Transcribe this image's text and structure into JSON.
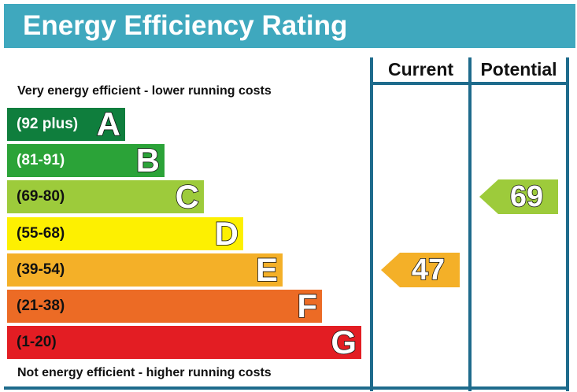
{
  "title": "Energy Efficiency Rating",
  "columns": {
    "current": "Current",
    "potential": "Potential"
  },
  "top_caption": "Very energy efficient - lower running costs",
  "bottom_caption": "Not energy efficient - higher running costs",
  "bands": [
    {
      "letter": "A",
      "range": "(92 plus)",
      "color": "#0f7e3d",
      "text_color": "#ffffff"
    },
    {
      "letter": "B",
      "range": "(81-91)",
      "color": "#2ba338",
      "text_color": "#ffffff"
    },
    {
      "letter": "C",
      "range": "(69-80)",
      "color": "#9dcb3b",
      "text_color": "#111111"
    },
    {
      "letter": "D",
      "range": "(55-68)",
      "color": "#fdf001",
      "text_color": "#111111"
    },
    {
      "letter": "E",
      "range": "(39-54)",
      "color": "#f4b028",
      "text_color": "#111111"
    },
    {
      "letter": "F",
      "range": "(21-38)",
      "color": "#ec6b25",
      "text_color": "#111111"
    },
    {
      "letter": "G",
      "range": "(1-20)",
      "color": "#e31d23",
      "text_color": "#111111"
    }
  ],
  "current": {
    "value": "47",
    "band": "E",
    "color": "#f4b028"
  },
  "potential": {
    "value": "69",
    "band": "C",
    "color": "#9dcb3b"
  }
}
